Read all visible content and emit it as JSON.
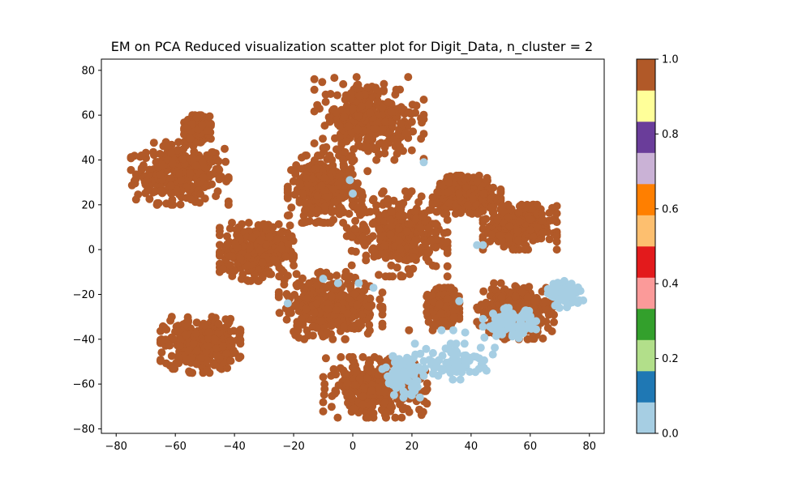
{
  "chart_data": {
    "type": "scatter",
    "title": "EM on PCA Reduced visualization scatter plot for Digit_Data, n_cluster = 2",
    "xlabel": "",
    "ylabel": "",
    "xlim": [
      -85,
      85
    ],
    "ylim": [
      -82,
      85
    ],
    "x_ticks": [
      -80,
      -60,
      -40,
      -20,
      0,
      20,
      40,
      60,
      80
    ],
    "y_ticks": [
      -80,
      -60,
      -40,
      -20,
      0,
      20,
      40,
      60,
      80
    ],
    "x_tick_labels": [
      "−80",
      "−60",
      "−40",
      "−20",
      "0",
      "20",
      "40",
      "60",
      "80"
    ],
    "y_tick_labels": [
      "−80",
      "−60",
      "−40",
      "−20",
      "0",
      "20",
      "40",
      "60",
      "80"
    ],
    "grid": false,
    "legend": "none",
    "series": [
      {
        "cluster": 1,
        "color": "#b15928",
        "regions": [
          {
            "x_range": [
              -75,
              -42
            ],
            "y_range": [
              20,
              48
            ]
          },
          {
            "x_range": [
              -57,
              -48
            ],
            "y_range": [
              48,
              60
            ]
          },
          {
            "x_range": [
              -65,
              -38
            ],
            "y_range": [
              -55,
              -30
            ]
          },
          {
            "x_range": [
              -22,
              3
            ],
            "y_range": [
              12,
              42
            ]
          },
          {
            "x_range": [
              -45,
              -20
            ],
            "y_range": [
              -14,
              12
            ]
          },
          {
            "x_range": [
              -13,
              24
            ],
            "y_range": [
              40,
              77
            ]
          },
          {
            "x_range": [
              -2,
              32
            ],
            "y_range": [
              -12,
              26
            ]
          },
          {
            "x_range": [
              -25,
              10
            ],
            "y_range": [
              -40,
              -10
            ]
          },
          {
            "x_range": [
              27,
              50
            ],
            "y_range": [
              16,
              33
            ]
          },
          {
            "x_range": [
              44,
              69
            ],
            "y_range": [
              0,
              20
            ]
          },
          {
            "x_range": [
              25,
              36
            ],
            "y_range": [
              -34,
              -17
            ]
          },
          {
            "x_range": [
              42,
              68
            ],
            "y_range": [
              -40,
              -15
            ]
          },
          {
            "x_range": [
              -10,
              26
            ],
            "y_range": [
              -75,
              -48
            ]
          }
        ],
        "points": [
          [
            19,
            -36
          ],
          [
            27,
            -36
          ],
          [
            5,
            35
          ],
          [
            18,
            52
          ],
          [
            15,
            -8
          ],
          [
            -38,
            -4
          ]
        ]
      },
      {
        "cluster": 0,
        "color": "#a6cee3",
        "regions": [
          {
            "x_range": [
              24,
              48
            ],
            "y_range": [
              -58,
              -42
            ]
          },
          {
            "x_range": [
              66,
              78
            ],
            "y_range": [
              -26,
              -14
            ]
          },
          {
            "x_range": [
              10,
              24
            ],
            "y_range": [
              -66,
              -46
            ]
          },
          {
            "x_range": [
              44,
              62
            ],
            "y_range": [
              -40,
              -26
            ]
          }
        ],
        "points": [
          [
            24,
            39
          ],
          [
            -1,
            31
          ],
          [
            0,
            25
          ],
          [
            42,
            2
          ],
          [
            44,
            2
          ],
          [
            -10,
            -13
          ],
          [
            -5,
            -15
          ],
          [
            30,
            -36
          ],
          [
            34,
            -36
          ],
          [
            38,
            -37
          ],
          [
            36,
            -23
          ],
          [
            -22,
            -24
          ],
          [
            2,
            -15
          ],
          [
            7,
            -17
          ],
          [
            21,
            -42
          ]
        ]
      }
    ],
    "colorbar": {
      "range": [
        0,
        1
      ],
      "ticks": [
        0.0,
        0.2,
        0.4,
        0.6,
        0.8,
        1.0
      ],
      "tick_labels": [
        "0.0",
        "0.2",
        "0.4",
        "0.6",
        "0.8",
        "1.0"
      ],
      "colors": [
        "#a6cee3",
        "#1f78b4",
        "#b2df8a",
        "#33a02c",
        "#fb9a99",
        "#e31a1c",
        "#fdbf6f",
        "#ff7f00",
        "#cab2d6",
        "#6a3d9a",
        "#ffff99",
        "#b15928"
      ]
    }
  }
}
